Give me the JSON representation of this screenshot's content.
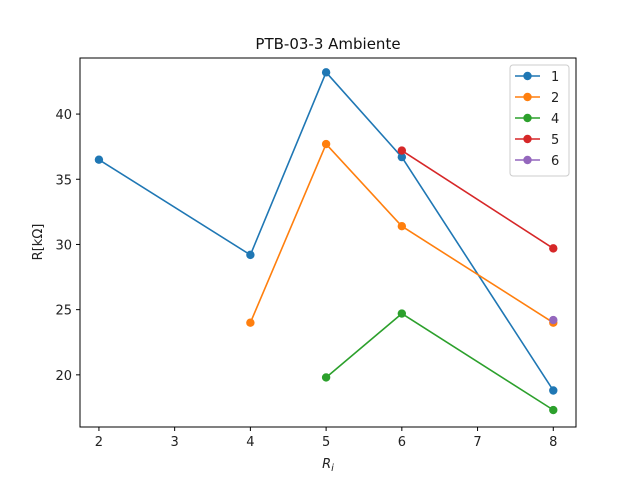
{
  "chart_data": {
    "type": "line",
    "title": "PTB-03-3 Ambiente",
    "xlabel": "R",
    "xlabel_subscript": "i",
    "ylabel": "R[kΩ]",
    "xlim": [
      1.75,
      8.3
    ],
    "ylim": [
      16.0,
      44.3
    ],
    "xticks": [
      2,
      3,
      4,
      5,
      6,
      7,
      8
    ],
    "yticks": [
      20,
      25,
      30,
      35,
      40
    ],
    "grid": false,
    "legend_position": "top-right",
    "series": [
      {
        "name": "1",
        "color": "#1f77b4",
        "x": [
          2,
          4,
          5,
          6,
          8
        ],
        "y": [
          36.5,
          29.2,
          43.2,
          36.7,
          18.8
        ]
      },
      {
        "name": "2",
        "color": "#ff7f0e",
        "x": [
          4,
          5,
          6,
          8
        ],
        "y": [
          24.0,
          37.7,
          31.4,
          24.0
        ]
      },
      {
        "name": "4",
        "color": "#2ca02c",
        "x": [
          5,
          6,
          8
        ],
        "y": [
          19.8,
          24.7,
          17.3
        ]
      },
      {
        "name": "5",
        "color": "#d62728",
        "x": [
          6,
          8
        ],
        "y": [
          37.2,
          29.7
        ]
      },
      {
        "name": "6",
        "color": "#9467bd",
        "x": [
          8
        ],
        "y": [
          24.2
        ]
      }
    ]
  }
}
